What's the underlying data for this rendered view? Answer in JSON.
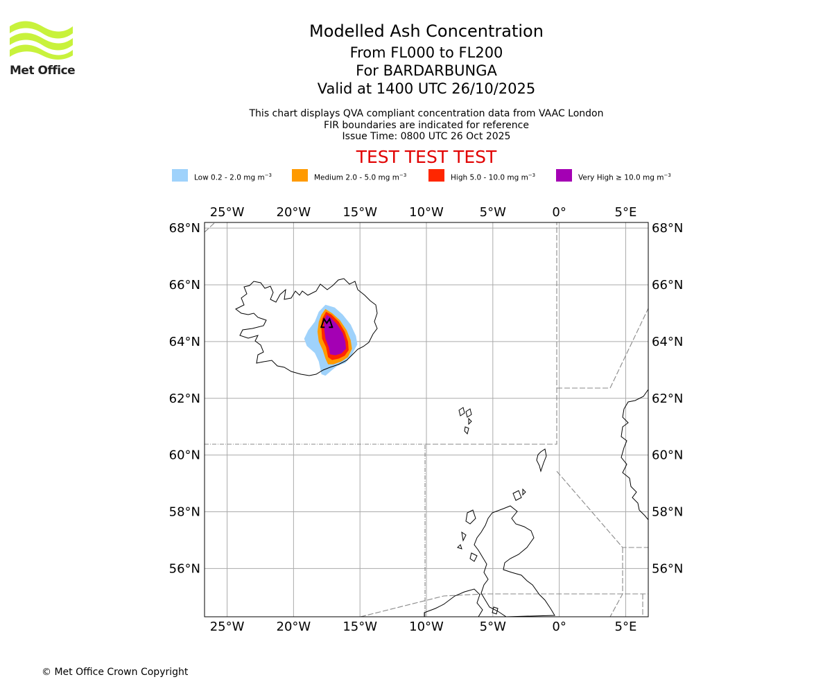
{
  "header": {
    "title": "Modelled Ash Concentration",
    "level_range": "From FL000 to FL200",
    "volcano_line": "For BARDARBUNGA",
    "valid_line": "Valid at 1400 UTC 26/10/2025",
    "description_1": "This chart displays QVA compliant concentration data from VAAC London",
    "description_2": "FIR boundaries are indicated for reference",
    "issue_time": "Issue Time: 0800 UTC 26 Oct 2025",
    "test_banner": "TEST TEST TEST"
  },
  "logo": {
    "text": "Met Office",
    "color": "#c8f23c"
  },
  "legend": [
    {
      "label": "Low 0.2 - 2.0 mg m",
      "unit_exp": "−3",
      "color": "#9fd2fb"
    },
    {
      "label": "Medium 2.0 - 5.0 mg m",
      "unit_exp": "−3",
      "color": "#ff9a00"
    },
    {
      "label": "High 5.0 - 10.0 mg m",
      "unit_exp": "−3",
      "color": "#ff2600"
    },
    {
      "label": "Very High ≥ 10.0 mg m",
      "unit_exp": "−3",
      "color": "#a400b4"
    }
  ],
  "map": {
    "lon_range": [
      -26.7,
      6.7
    ],
    "lat_range": [
      54.3,
      68.2
    ],
    "lon_ticks": [
      {
        "value": -25,
        "label": "25°W"
      },
      {
        "value": -20,
        "label": "20°W"
      },
      {
        "value": -15,
        "label": "15°W"
      },
      {
        "value": -10,
        "label": "10°W"
      },
      {
        "value": -5,
        "label": "5°W"
      },
      {
        "value": 0,
        "label": "0°"
      },
      {
        "value": 5,
        "label": "5°E"
      }
    ],
    "lat_ticks": [
      {
        "value": 68,
        "label": "68°N"
      },
      {
        "value": 66,
        "label": "66°N"
      },
      {
        "value": 64,
        "label": "64°N"
      },
      {
        "value": 62,
        "label": "62°N"
      },
      {
        "value": 60,
        "label": "60°N"
      },
      {
        "value": 58,
        "label": "58°N"
      },
      {
        "value": 56,
        "label": "56°N"
      }
    ],
    "volcano": {
      "name": "BARDARBUNGA",
      "lon": -17.5,
      "lat": 64.7
    },
    "ash_layers": [
      {
        "level": "Low",
        "color": "#9fd2fb",
        "polygon": [
          [
            -17.6,
            65.3
          ],
          [
            -16.9,
            65.2
          ],
          [
            -16.3,
            64.95
          ],
          [
            -15.7,
            64.6
          ],
          [
            -15.3,
            64.2
          ],
          [
            -15.2,
            63.9
          ],
          [
            -15.6,
            63.55
          ],
          [
            -16.1,
            63.25
          ],
          [
            -16.7,
            63.15
          ],
          [
            -17.1,
            63.0
          ],
          [
            -17.6,
            62.8
          ],
          [
            -17.9,
            62.85
          ],
          [
            -18.1,
            63.3
          ],
          [
            -18.4,
            63.6
          ],
          [
            -19.0,
            63.85
          ],
          [
            -19.2,
            64.1
          ],
          [
            -18.9,
            64.4
          ],
          [
            -18.4,
            64.7
          ],
          [
            -18.1,
            65.05
          ]
        ]
      },
      {
        "level": "Medium",
        "color": "#ff9a00",
        "polygon": [
          [
            -17.6,
            65.15
          ],
          [
            -17.1,
            65.0
          ],
          [
            -16.5,
            64.75
          ],
          [
            -16.0,
            64.4
          ],
          [
            -15.7,
            64.05
          ],
          [
            -15.6,
            63.75
          ],
          [
            -15.9,
            63.45
          ],
          [
            -16.4,
            63.3
          ],
          [
            -17.0,
            63.2
          ],
          [
            -17.4,
            63.2
          ],
          [
            -17.6,
            63.4
          ],
          [
            -17.8,
            63.7
          ],
          [
            -18.1,
            64.0
          ],
          [
            -18.2,
            64.35
          ],
          [
            -18.1,
            64.7
          ],
          [
            -17.9,
            64.95
          ]
        ]
      },
      {
        "level": "High",
        "color": "#ff2600",
        "polygon": [
          [
            -17.55,
            65.05
          ],
          [
            -17.15,
            64.95
          ],
          [
            -16.6,
            64.7
          ],
          [
            -16.15,
            64.35
          ],
          [
            -15.9,
            64.0
          ],
          [
            -15.85,
            63.7
          ],
          [
            -16.15,
            63.5
          ],
          [
            -16.6,
            63.4
          ],
          [
            -17.1,
            63.35
          ],
          [
            -17.4,
            63.45
          ],
          [
            -17.55,
            63.8
          ],
          [
            -17.85,
            64.1
          ],
          [
            -17.9,
            64.45
          ],
          [
            -17.85,
            64.8
          ]
        ]
      },
      {
        "level": "Very High",
        "color": "#a400b4",
        "polygon": [
          [
            -17.5,
            64.95
          ],
          [
            -17.2,
            64.85
          ],
          [
            -16.7,
            64.6
          ],
          [
            -16.3,
            64.3
          ],
          [
            -16.1,
            64.0
          ],
          [
            -16.05,
            63.75
          ],
          [
            -16.4,
            63.58
          ],
          [
            -16.85,
            63.52
          ],
          [
            -17.25,
            63.55
          ],
          [
            -17.35,
            63.8
          ],
          [
            -17.6,
            64.1
          ],
          [
            -17.7,
            64.45
          ],
          [
            -17.7,
            64.75
          ]
        ]
      }
    ]
  },
  "footer": {
    "copyright": "© Met Office Crown Copyright"
  }
}
